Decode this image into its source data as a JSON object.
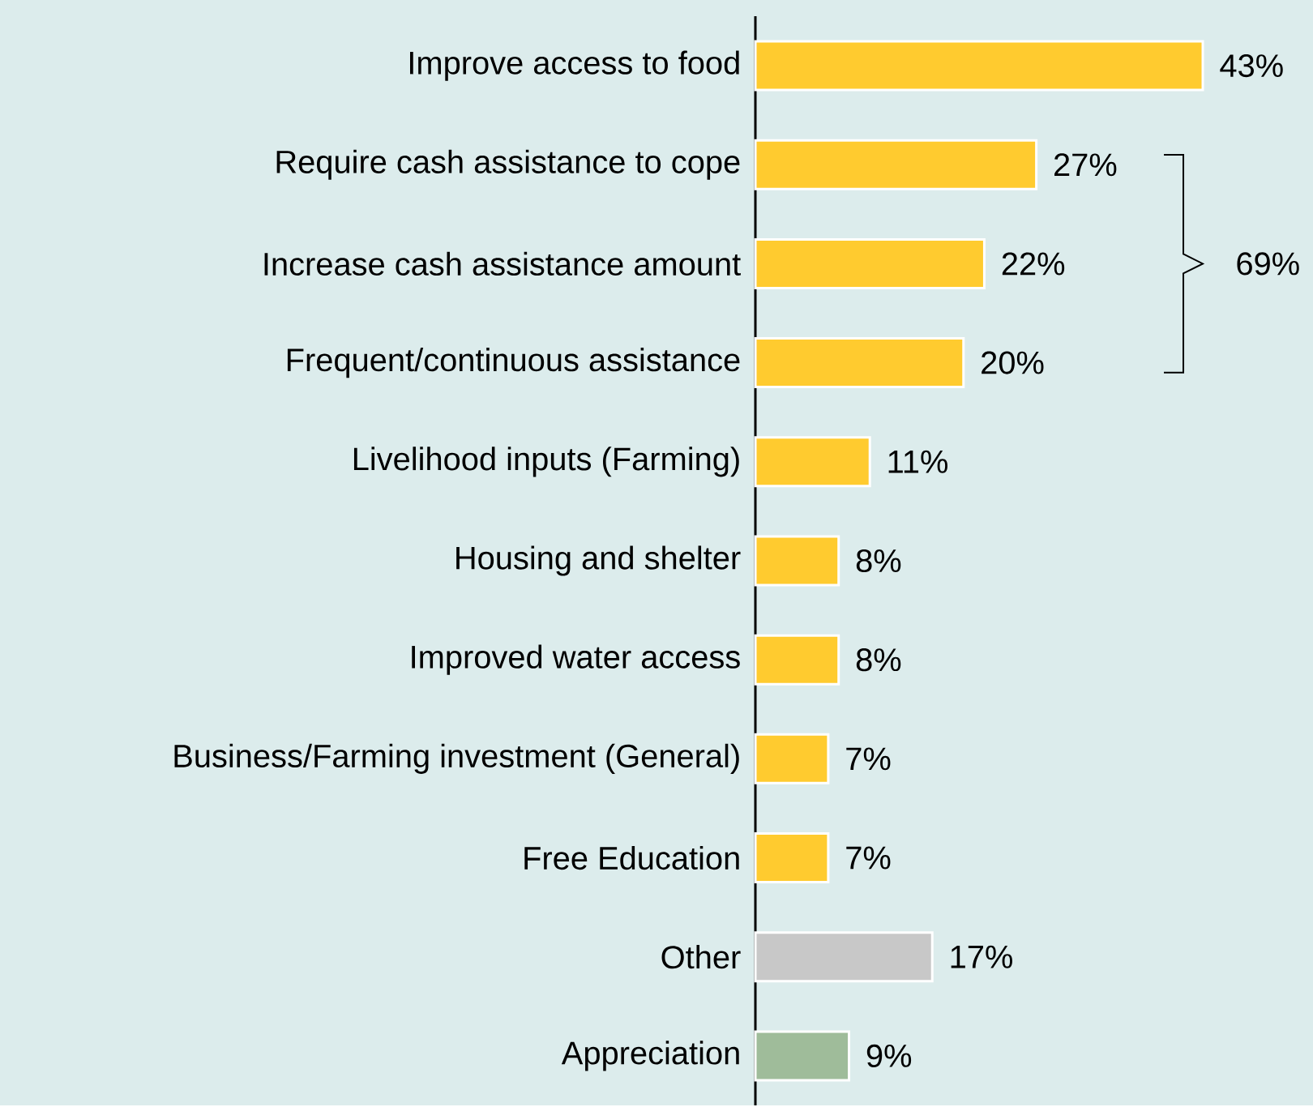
{
  "chart_data": {
    "type": "bar",
    "orientation": "horizontal",
    "categories": [
      "Improve access to food",
      "Require cash assistance to cope",
      "Increase cash assistance amount",
      "Frequent/continuous assistance",
      "Livelihood inputs (Farming)",
      "Housing and shelter",
      "Improved water access",
      "Business/Farming investment (General)",
      "Free Education",
      "Other",
      "Appreciation"
    ],
    "values": [
      43,
      27,
      22,
      20,
      11,
      8,
      8,
      7,
      7,
      17,
      9
    ],
    "value_labels": [
      "43%",
      "27%",
      "22%",
      "20%",
      "11%",
      "8%",
      "8%",
      "7%",
      "7%",
      "17%",
      "9%"
    ],
    "colors": [
      "#ffcb2f",
      "#ffcb2f",
      "#ffcb2f",
      "#ffcb2f",
      "#ffcb2f",
      "#ffcb2f",
      "#ffcb2f",
      "#ffcb2f",
      "#ffcb2f",
      "#c8c8c8",
      "#9fbc9a"
    ],
    "annotations": [
      "69%"
    ]
  }
}
